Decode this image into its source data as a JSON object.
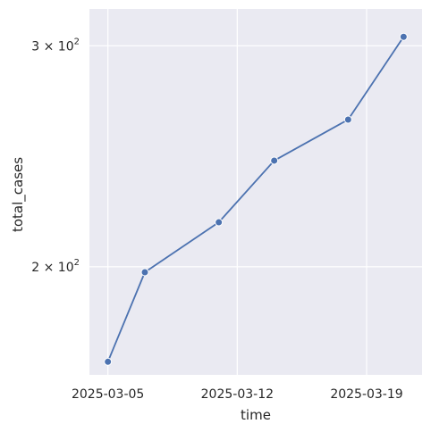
{
  "chart_data": {
    "type": "line",
    "xlabel": "time",
    "ylabel": "total_cases",
    "yscale": "log",
    "grid": true,
    "x_ticks": [
      "2025-03-05",
      "2025-03-12",
      "2025-03-19"
    ],
    "y_ticks": [
      {
        "value": 200,
        "base": "2 × 10",
        "exp": "2"
      },
      {
        "value": 300,
        "base": "3 × 10",
        "exp": "2"
      }
    ],
    "xlim": [
      "2025-03-04",
      "2025-03-22"
    ],
    "ylim": [
      164,
      321
    ],
    "series": [
      {
        "x": [
          "2025-03-05",
          "2025-03-07",
          "2025-03-11",
          "2025-03-14",
          "2025-03-18",
          "2025-03-21"
        ],
        "values": [
          168,
          198,
          217,
          243,
          262,
          305
        ]
      }
    ],
    "colors": {
      "line": "#4c72b0",
      "background": "#eaeaf2",
      "grid": "#ffffff"
    }
  }
}
